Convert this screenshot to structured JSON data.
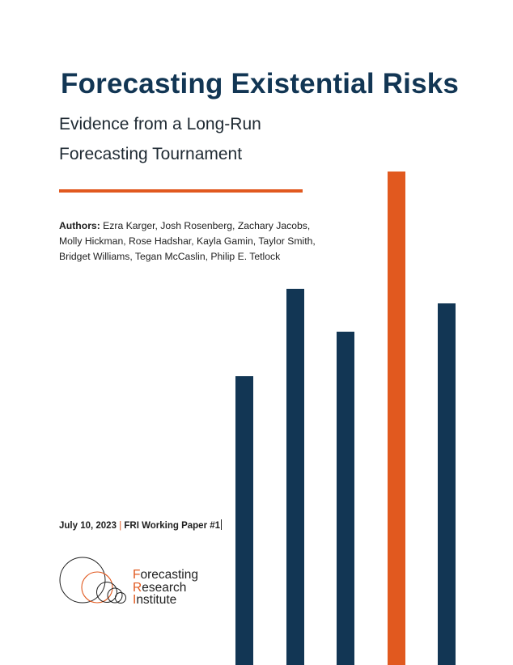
{
  "title": "Forecasting Existential Risks",
  "subtitle_line1": "Evidence from a Long-Run",
  "subtitle_line2": "Forecasting Tournament",
  "authors": {
    "label": "Authors:",
    "line1": "Ezra Karger, Josh Rosenberg, Zachary Jacobs,",
    "line2": "Molly Hickman, Rose Hadshar,  Kayla Gamin, Taylor Smith,",
    "line3": "Bridget Williams, Tegan McCaslin, Philip E. Tetlock"
  },
  "date": "July 10, 2023",
  "separator": "|",
  "paper_label": "FRI Working Paper #1",
  "logo": {
    "line1_first": "F",
    "line1_rest": "orecasting",
    "line2_first": "R",
    "line2_rest": "esearch",
    "line3_first": "I",
    "line3_rest": "nstitute"
  },
  "colors": {
    "navy": "#123654",
    "orange": "#e1591f"
  },
  "decorative_bars": [
    {
      "level": 0.585,
      "color": "navy"
    },
    {
      "level": 0.763,
      "color": "navy"
    },
    {
      "level": 0.675,
      "color": "navy"
    },
    {
      "level": 1.0,
      "color": "orange"
    },
    {
      "level": 0.733,
      "color": "navy"
    }
  ]
}
